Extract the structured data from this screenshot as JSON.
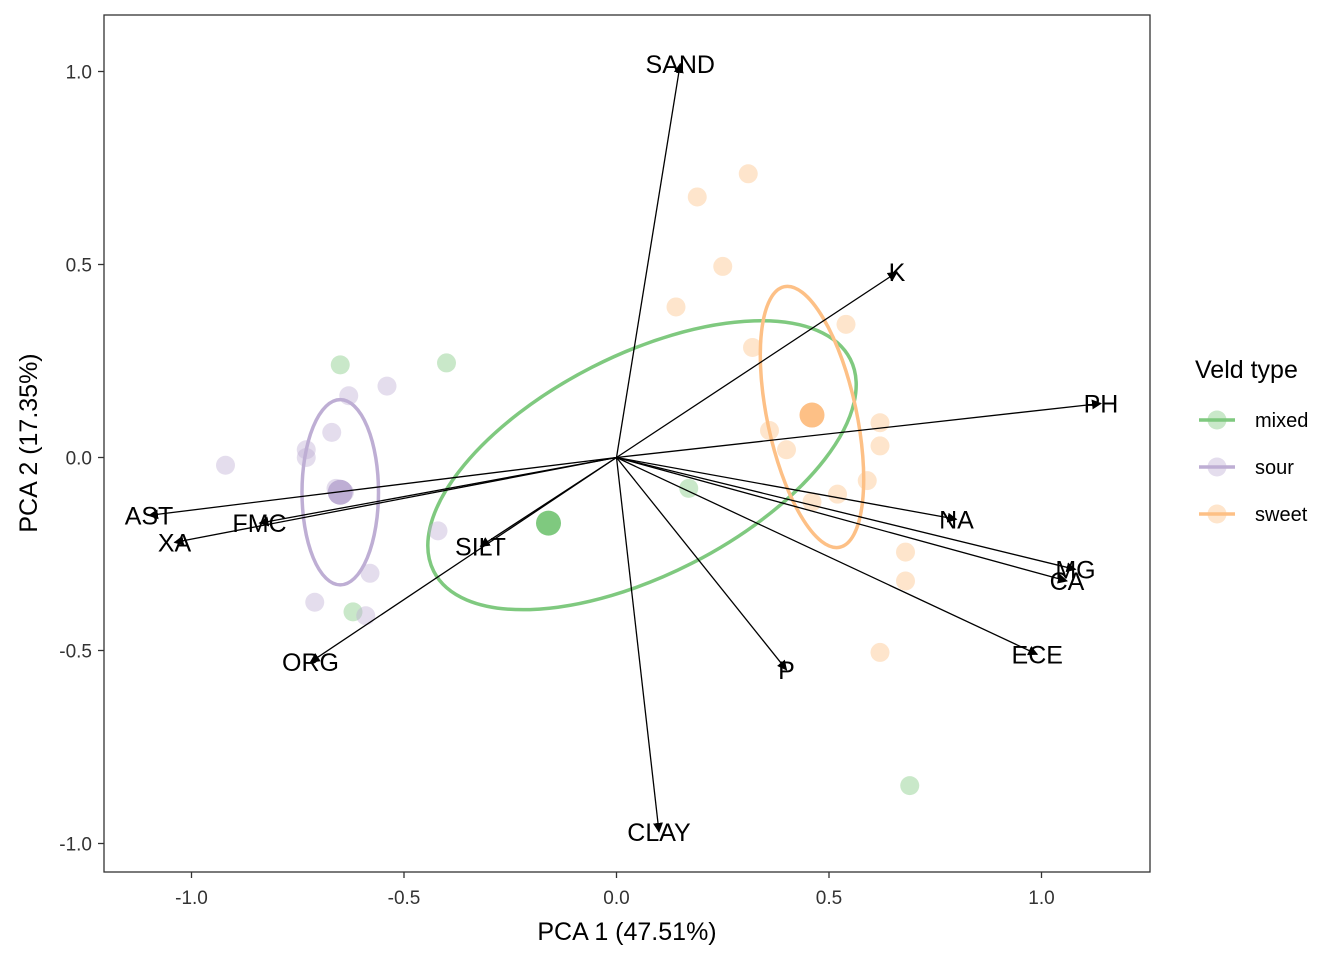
{
  "chart_data": {
    "type": "scatter",
    "subtype": "pca-biplot",
    "xlabel": "PCA 1 (47.51%)",
    "ylabel": "PCA 2 (17.35%)",
    "xlim": [
      -1.21,
      1.255
    ],
    "ylim": [
      -1.075,
      1.145
    ],
    "x_ticks": [
      {
        "value": -1.0,
        "label": "-1.0"
      },
      {
        "value": -0.5,
        "label": "-0.5"
      },
      {
        "value": 0.0,
        "label": "0.0"
      },
      {
        "value": 0.5,
        "label": "0.5"
      },
      {
        "value": 1.0,
        "label": "1.0"
      }
    ],
    "y_ticks": [
      {
        "value": 1.0,
        "label": "1.0"
      },
      {
        "value": 0.5,
        "label": "0.5"
      },
      {
        "value": 0.0,
        "label": "0.0"
      },
      {
        "value": -0.5,
        "label": "-0.5"
      },
      {
        "value": -1.0,
        "label": "-1.0"
      }
    ],
    "grid": false,
    "legend": {
      "title": "Veld type",
      "position": "right"
    },
    "series": [
      {
        "name": "mixed",
        "color": "#7FC97F",
        "points": [
          [
            -0.65,
            0.24
          ],
          [
            -0.4,
            0.245
          ],
          [
            0.17,
            -0.08
          ],
          [
            -0.62,
            -0.4
          ],
          [
            0.69,
            -0.85
          ]
        ],
        "centroid": [
          -0.16,
          -0.17
        ],
        "ellipse": {
          "center": [
            0.06,
            -0.02
          ],
          "rx": 0.55,
          "ry": 0.285,
          "angle_deg": -27
        }
      },
      {
        "name": "sour",
        "color": "#BEAED4",
        "points": [
          [
            -0.92,
            -0.02
          ],
          [
            -0.73,
            0.0
          ],
          [
            -0.73,
            0.02
          ],
          [
            -0.67,
            0.065
          ],
          [
            -0.63,
            0.16
          ],
          [
            -0.54,
            0.185
          ],
          [
            -0.66,
            -0.08
          ],
          [
            -0.65,
            -0.09
          ],
          [
            -0.64,
            -0.09
          ],
          [
            -0.42,
            -0.19
          ],
          [
            -0.58,
            -0.3
          ],
          [
            -0.71,
            -0.375
          ],
          [
            -0.59,
            -0.41
          ]
        ],
        "centroid": [
          -0.65,
          -0.09
        ],
        "ellipse": {
          "center": [
            -0.65,
            -0.09
          ],
          "rx": 0.09,
          "ry": 0.24,
          "angle_deg": 0
        }
      },
      {
        "name": "sweet",
        "color": "#FDC086",
        "points": [
          [
            0.31,
            0.735
          ],
          [
            0.19,
            0.675
          ],
          [
            0.25,
            0.495
          ],
          [
            0.14,
            0.39
          ],
          [
            0.54,
            0.345
          ],
          [
            0.32,
            0.285
          ],
          [
            0.62,
            0.09
          ],
          [
            0.36,
            0.07
          ],
          [
            0.62,
            0.03
          ],
          [
            0.4,
            0.02
          ],
          [
            0.59,
            -0.06
          ],
          [
            0.52,
            -0.095
          ],
          [
            0.46,
            -0.115
          ],
          [
            0.68,
            -0.245
          ],
          [
            0.68,
            -0.32
          ],
          [
            0.62,
            -0.505
          ]
        ],
        "centroid": [
          0.46,
          0.11
        ],
        "ellipse": {
          "center": [
            0.46,
            0.105
          ],
          "rx": 0.105,
          "ry": 0.345,
          "angle_deg": -12
        }
      }
    ],
    "loadings": [
      {
        "name": "SAND",
        "x": 0.15,
        "y": 1.02
      },
      {
        "name": "K",
        "x": 0.66,
        "y": 0.48
      },
      {
        "name": "PH",
        "x": 1.14,
        "y": 0.14
      },
      {
        "name": "NA",
        "x": 0.8,
        "y": -0.16
      },
      {
        "name": "MG",
        "x": 1.08,
        "y": -0.29
      },
      {
        "name": "CA",
        "x": 1.06,
        "y": -0.32
      },
      {
        "name": "ECE",
        "x": 0.99,
        "y": -0.51
      },
      {
        "name": "P",
        "x": 0.4,
        "y": -0.55
      },
      {
        "name": "CLAY",
        "x": 0.1,
        "y": -0.97
      },
      {
        "name": "ORG",
        "x": -0.72,
        "y": -0.53
      },
      {
        "name": "SILT",
        "x": -0.32,
        "y": -0.23
      },
      {
        "name": "FMC",
        "x": -0.84,
        "y": -0.17
      },
      {
        "name": "AST",
        "x": -1.1,
        "y": -0.15
      },
      {
        "name": "XA",
        "x": -1.04,
        "y": -0.22
      }
    ]
  }
}
